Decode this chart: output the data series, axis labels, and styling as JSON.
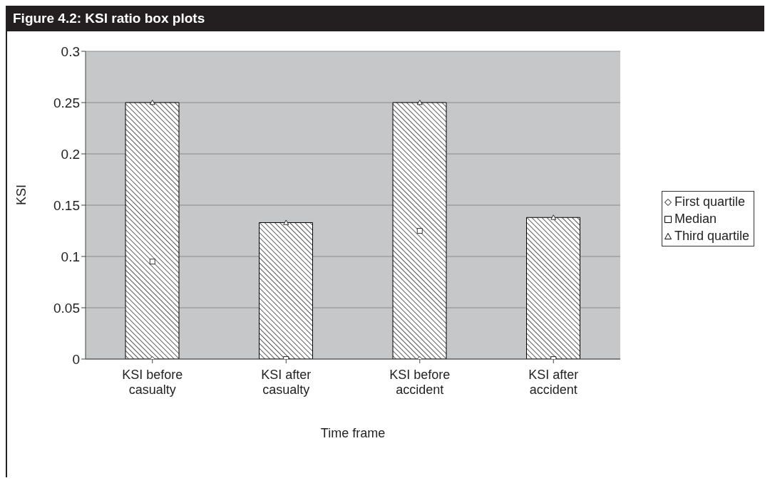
{
  "chart_data": {
    "type": "bar",
    "title": "Figure 4.2: KSI ratio box plots",
    "xlabel": "Time frame",
    "ylabel": "KSI",
    "categories": [
      "KSI before casualty",
      "KSI after casualty",
      "KSI before accident",
      "KSI after accident"
    ],
    "series": [
      {
        "color": "#000000",
        "values": [
          0.25,
          0.133,
          0.25,
          0.138
        ]
      },
      {
        "type": "scatter",
        "name": "First quartile",
        "color": "#ffffff",
        "marker": "diamond",
        "values": [
          0,
          null,
          0,
          null
        ]
      },
      {
        "type": "scatter",
        "name": "Median",
        "color": "#ffffff",
        "marker": "square",
        "values": [
          0.095,
          0,
          0.125,
          0
        ]
      },
      {
        "type": "scatter",
        "name": "Third quartile",
        "color": "#ffffff",
        "marker": "triangle",
        "values": [
          0.25,
          0.133,
          0.25,
          0.138
        ]
      }
    ],
    "ylim": [
      0,
      0.3
    ],
    "yticks": [
      0,
      0.05,
      0.1,
      0.15,
      0.2,
      0.25,
      0.3
    ],
    "grid": "y",
    "legend": "right"
  }
}
